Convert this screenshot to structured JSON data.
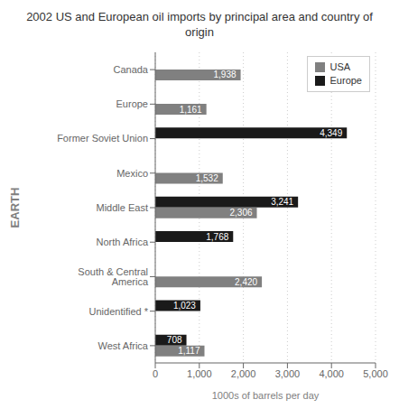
{
  "chart_data": {
    "type": "bar",
    "orientation": "horizontal",
    "title": "2002 US and European oil imports by principal area and country of origin",
    "xlabel": "1000s of barrels per day",
    "ylabel": "EARTH",
    "categories": [
      "Canada",
      "Europe",
      "Former Soviet Union",
      "Mexico",
      "Middle East",
      "North Africa",
      "South & Central America",
      "Unidentified *",
      "West Africa"
    ],
    "series": [
      {
        "name": "USA",
        "color": "#808080",
        "values": [
          1938,
          1161,
          null,
          1532,
          2306,
          null,
          2420,
          null,
          1117
        ],
        "value_labels": [
          "1,938",
          "1,161",
          null,
          "1,532",
          "2,306",
          null,
          "2,420",
          null,
          "1,117"
        ]
      },
      {
        "name": "Europe",
        "color": "#1a1a1a",
        "values": [
          null,
          null,
          4349,
          null,
          3241,
          1768,
          null,
          1023,
          708
        ],
        "value_labels": [
          null,
          null,
          "4,349",
          null,
          "3,241",
          "1,768",
          null,
          "1,023",
          "708"
        ]
      }
    ],
    "xlim": [
      0,
      5000
    ],
    "xticks": [
      0,
      {
        "value": 1000,
        "label": "1,000"
      },
      {
        "value": 2000,
        "label": "2,000"
      },
      {
        "value": 3000,
        "label": "3,000"
      },
      {
        "value": 4000,
        "label": "4,000"
      },
      {
        "value": 5000,
        "label": "5,000"
      }
    ],
    "grid": true,
    "legend": "upper right",
    "data_labels": true
  }
}
